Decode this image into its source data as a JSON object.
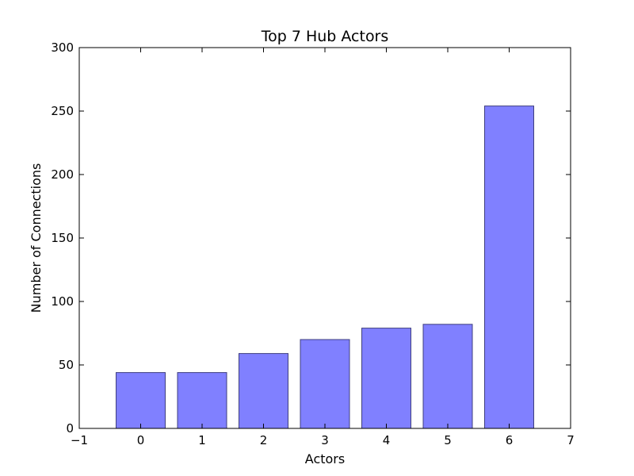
{
  "chart_data": {
    "type": "bar",
    "title": "Top 7 Hub Actors",
    "xlabel": "Actors",
    "ylabel": "Number of Connections",
    "categories": [
      "0",
      "1",
      "2",
      "3",
      "4",
      "5",
      "6"
    ],
    "x": [
      0,
      1,
      2,
      3,
      4,
      5,
      6
    ],
    "values": [
      44,
      44,
      59,
      70,
      79,
      82,
      254
    ],
    "xlim": [
      -1,
      7
    ],
    "ylim": [
      0,
      300
    ],
    "xticks": [
      -1,
      0,
      1,
      2,
      3,
      4,
      5,
      6,
      7
    ],
    "xtick_labels": [
      "−1",
      "0",
      "1",
      "2",
      "3",
      "4",
      "5",
      "6",
      "7"
    ],
    "yticks": [
      0,
      50,
      100,
      150,
      200,
      250,
      300
    ],
    "ytick_labels": [
      "0",
      "50",
      "100",
      "150",
      "200",
      "250",
      "300"
    ],
    "bar_color": "#8080ff",
    "bar_edge_color": "#3f3f7f",
    "grid": false,
    "legend": false
  }
}
